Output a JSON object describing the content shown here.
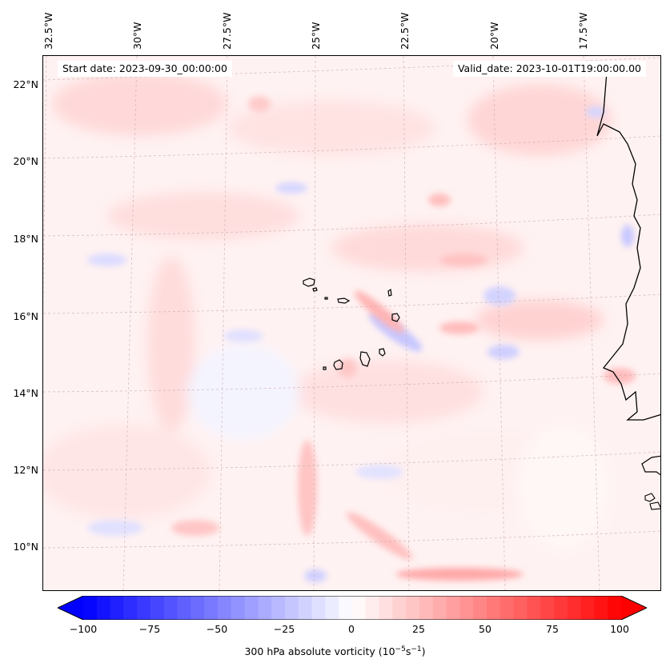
{
  "map": {
    "start_date": "Start date: 2023-09-30_00:00:00",
    "valid_date": "Valid_date: 2023-10-01T19:00:00.00",
    "longitude_labels": [
      "32.5°W",
      "30°W",
      "27.5°W",
      "25°W",
      "22.5°W",
      "20°W",
      "17.5°W"
    ],
    "latitude_labels": [
      "22°N",
      "20°N",
      "18°N",
      "16°N",
      "14°N",
      "12°N",
      "10°N"
    ],
    "field": "300 hPa absolute vorticity"
  },
  "colorbar": {
    "ticks": [
      "−100",
      "−75",
      "−50",
      "−25",
      "0",
      "25",
      "50",
      "75",
      "100"
    ],
    "title": "300 hPa absolute vorticity (10",
    "title_exp1": "−5",
    "title_mid": "s",
    "title_exp2": "−1",
    "title_end": ")",
    "range": [
      -100,
      100
    ],
    "levels": 40,
    "colors": {
      "min": "#0000ff",
      "mid": "#ffffff",
      "max": "#ff0000"
    }
  }
}
